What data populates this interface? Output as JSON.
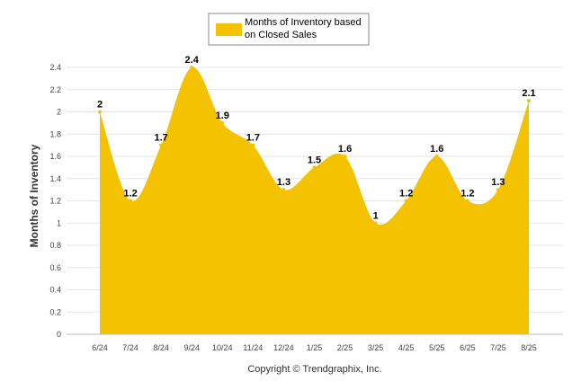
{
  "chart_data": {
    "type": "area",
    "categories": [
      "6/24",
      "7/24",
      "8/24",
      "9/24",
      "10/24",
      "11/24",
      "12/24",
      "1/25",
      "2/25",
      "3/25",
      "4/25",
      "5/25",
      "6/25",
      "7/25",
      "8/25"
    ],
    "series": [
      {
        "name": "Months of Inventory based on Closed Sales",
        "values": [
          2,
          1.2,
          1.7,
          2.4,
          1.9,
          1.7,
          1.3,
          1.5,
          1.6,
          1,
          1.2,
          1.6,
          1.2,
          1.3,
          2.1
        ],
        "color": "#f5c200"
      }
    ],
    "data_labels": [
      "2",
      "1.2",
      "1.7",
      "2.4",
      "1.9",
      "1.7",
      "1.3",
      "1.5",
      "1.6",
      "1",
      "1.2",
      "1.6",
      "1.2",
      "1.3",
      "2.1"
    ],
    "legend_lines": [
      "Months of Inventory based",
      "on Closed Sales"
    ],
    "ylabel": "Months of Inventory",
    "xlabel": "",
    "ylim": [
      0,
      2.4
    ],
    "yticks": [
      "0",
      "0.2",
      "0.4",
      "0.6",
      "0.8",
      "1",
      "1.2",
      "1.4",
      "1.6",
      "1.8",
      "2",
      "2.2",
      "2.4"
    ],
    "grid": true,
    "legend_position": "top-center",
    "gridline_color": "#e6e6e6"
  },
  "credit": "Copyright © Trendgraphix, Inc."
}
